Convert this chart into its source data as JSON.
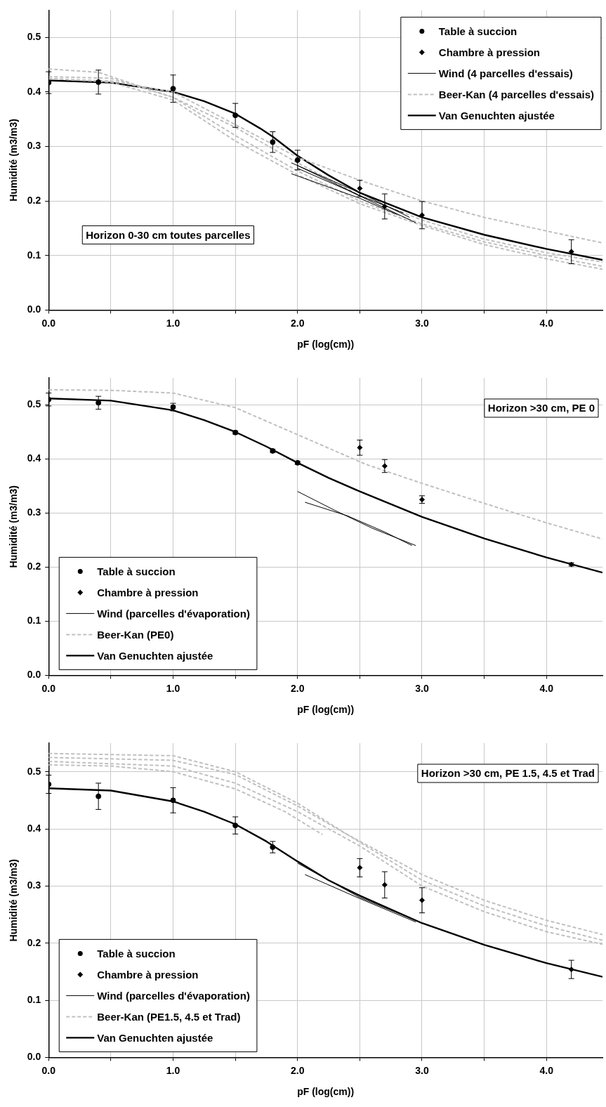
{
  "chart_data": [
    {
      "type": "line",
      "xlabel": "pF (log(cm))",
      "ylabel": "Humidité (m3/m3)",
      "annotations": [
        "Horizon 0-30 cm toutes parcelles"
      ],
      "legend": "top right",
      "grid": true,
      "xlim": [
        0,
        4.45
      ],
      "xticks": [
        {
          "value": 0,
          "label": "0.0"
        },
        {
          "value": 0.5,
          "label": null
        },
        {
          "value": 1,
          "label": "1.0"
        },
        {
          "value": 1.5,
          "label": null
        },
        {
          "value": 2,
          "label": "2.0"
        },
        {
          "value": 2.5,
          "label": null
        },
        {
          "value": 3,
          "label": "3.0"
        },
        {
          "value": 3.5,
          "label": null
        },
        {
          "value": 4,
          "label": "4.0"
        }
      ],
      "ylim": [
        0,
        0.55
      ],
      "yticks": [
        {
          "value": 0,
          "label": "0.0"
        },
        {
          "value": 0.1,
          "label": "0.1"
        },
        {
          "value": 0.2,
          "label": "0.2"
        },
        {
          "value": 0.3,
          "label": "0.3"
        },
        {
          "value": 0.4,
          "label": "0.4"
        },
        {
          "value": 0.5,
          "label": "0.5"
        }
      ],
      "series": [
        {
          "name": "Table à succion",
          "type": "scatter",
          "marker": "circle",
          "color": "#000000",
          "x": [
            0,
            0.4,
            1,
            1.5,
            1.8,
            2
          ],
          "values": [
            0.417,
            0.418,
            0.406,
            0.357,
            0.308,
            0.275
          ],
          "errors": [
            0.02,
            0.022,
            0.025,
            0.022,
            0.019,
            0.018
          ]
        },
        {
          "name": "Chambre à pression",
          "type": "scatter",
          "marker": "diamond",
          "color": "#000000",
          "x": [
            2.5,
            2.7,
            3,
            4.2
          ],
          "values": [
            0.223,
            0.19,
            0.174,
            0.107
          ],
          "errors": [
            0.015,
            0.023,
            0.025,
            0.022
          ]
        },
        {
          "name": "Wind (4 parcelles d'essais)",
          "type": "line",
          "marker": "none",
          "line_style": "solid",
          "color": "#000000",
          "x": [
            1.95,
            2.5,
            2.9
          ],
          "values": [
            0.27,
            0.215,
            0.17
          ]
        },
        {
          "type": "line",
          "marker": "none",
          "line_style": "solid",
          "color": "#000000",
          "x": [
            2,
            2.5,
            2.85
          ],
          "values": [
            0.265,
            0.21,
            0.178
          ]
        },
        {
          "type": "line",
          "marker": "none",
          "line_style": "solid",
          "color": "#000000",
          "x": [
            1.95,
            2.5,
            2.8
          ],
          "values": [
            0.25,
            0.205,
            0.175
          ]
        },
        {
          "type": "line",
          "marker": "none",
          "line_style": "solid",
          "color": "#000000",
          "x": [
            2,
            2.4,
            2.95
          ],
          "values": [
            0.26,
            0.22,
            0.16
          ]
        },
        {
          "name": "Beer-Kan (4 parcelles d'essais)",
          "type": "line",
          "marker": "none",
          "line_style": "dashed",
          "color": "#c0c0c0",
          "x": [
            0,
            0.4,
            1,
            1.5,
            2,
            2.5,
            3,
            3.5,
            4,
            4.45
          ],
          "values": [
            0.442,
            0.436,
            0.39,
            0.32,
            0.255,
            0.2,
            0.158,
            0.125,
            0.1,
            0.08
          ]
        },
        {
          "type": "line",
          "marker": "none",
          "line_style": "dashed",
          "color": "#c0c0c0",
          "x": [
            0,
            0.5,
            1,
            1.5,
            2,
            2.5,
            3,
            3.5,
            4,
            4.45
          ],
          "values": [
            0.428,
            0.425,
            0.39,
            0.335,
            0.27,
            0.21,
            0.165,
            0.13,
            0.105,
            0.088
          ]
        },
        {
          "type": "line",
          "marker": "none",
          "line_style": "dashed",
          "color": "#c0c0c0",
          "x": [
            0,
            0.5,
            1,
            1.5,
            2,
            2.5,
            3,
            3.5,
            4,
            4.45
          ],
          "values": [
            0.424,
            0.42,
            0.4,
            0.34,
            0.28,
            0.238,
            0.2,
            0.17,
            0.145,
            0.123
          ]
        },
        {
          "type": "line",
          "marker": "none",
          "line_style": "dashed",
          "color": "#c0c0c0",
          "x": [
            0,
            0.5,
            1,
            1.5,
            2,
            2.5,
            3,
            3.5,
            4,
            4.45
          ],
          "values": [
            0.425,
            0.418,
            0.385,
            0.31,
            0.248,
            0.195,
            0.155,
            0.12,
            0.094,
            0.075
          ]
        },
        {
          "name": "Van Genuchten ajustée",
          "type": "line",
          "marker": "none",
          "line_style": "solid",
          "color": "#000000",
          "x": [
            0,
            0.5,
            1,
            1.25,
            1.5,
            1.7,
            1.8,
            2,
            2.25,
            2.5,
            3,
            3.5,
            4,
            4.45
          ],
          "values": [
            0.421,
            0.417,
            0.4,
            0.383,
            0.36,
            0.333,
            0.318,
            0.283,
            0.247,
            0.215,
            0.17,
            0.138,
            0.112,
            0.092
          ]
        }
      ]
    },
    {
      "type": "line",
      "xlabel": "pF (log(cm))",
      "ylabel": "Humidité (m3/m3)",
      "annotations": [
        "Horizon >30 cm, PE 0"
      ],
      "legend": "bottom left",
      "grid": true,
      "xlim": [
        0,
        4.45
      ],
      "xticks": [
        {
          "value": 0,
          "label": "0.0"
        },
        {
          "value": 0.5,
          "label": null
        },
        {
          "value": 1,
          "label": "1.0"
        },
        {
          "value": 1.5,
          "label": null
        },
        {
          "value": 2,
          "label": "2.0"
        },
        {
          "value": 2.5,
          "label": null
        },
        {
          "value": 3,
          "label": "3.0"
        },
        {
          "value": 3.5,
          "label": null
        },
        {
          "value": 4,
          "label": "4.0"
        }
      ],
      "ylim": [
        0,
        0.55
      ],
      "yticks": [
        {
          "value": 0,
          "label": "0.0"
        },
        {
          "value": 0.1,
          "label": "0.1"
        },
        {
          "value": 0.2,
          "label": "0.2"
        },
        {
          "value": 0.3,
          "label": "0.3"
        },
        {
          "value": 0.4,
          "label": "0.4"
        },
        {
          "value": 0.5,
          "label": "0.5"
        }
      ],
      "series": [
        {
          "name": "Table à succion",
          "type": "scatter",
          "marker": "circle",
          "color": "#000000",
          "x": [
            0,
            0.4,
            1,
            1.5,
            1.8,
            2
          ],
          "values": [
            0.51,
            0.504,
            0.496,
            0.449,
            0.415,
            0.393
          ],
          "errors": [
            0.012,
            0.012,
            0.007,
            0.003,
            0.003,
            0.003
          ]
        },
        {
          "name": "Chambre à pression",
          "type": "scatter",
          "marker": "diamond",
          "color": "#000000",
          "x": [
            2.5,
            2.7,
            3,
            4.2
          ],
          "values": [
            0.421,
            0.387,
            0.325,
            0.205
          ],
          "errors": [
            0.014,
            0.012,
            0.007,
            0.003
          ]
        },
        {
          "name": "Wind (parcelles d'évaporation)",
          "type": "line",
          "marker": "none",
          "line_style": "solid",
          "color": "#000000",
          "x": [
            2,
            2.3,
            2.6,
            2.95
          ],
          "values": [
            0.34,
            0.305,
            0.272,
            0.24
          ]
        },
        {
          "type": "line",
          "marker": "none",
          "line_style": "solid",
          "color": "#000000",
          "x": [
            2.06,
            2.4,
            2.7,
            2.92
          ],
          "values": [
            0.32,
            0.295,
            0.265,
            0.24
          ]
        },
        {
          "name": "Beer-Kan (PE0)",
          "type": "line",
          "marker": "none",
          "line_style": "dashed",
          "color": "#c0c0c0",
          "x": [
            0,
            0.5,
            1,
            1.5,
            2,
            2.55,
            3,
            3.5,
            4,
            4.45
          ],
          "values": [
            0.528,
            0.527,
            0.522,
            0.495,
            0.445,
            0.39,
            0.355,
            0.318,
            0.282,
            0.252
          ]
        },
        {
          "name": "Van Genuchten ajustée",
          "type": "line",
          "marker": "none",
          "line_style": "solid",
          "color": "#000000",
          "x": [
            0,
            0.5,
            1,
            1.25,
            1.5,
            1.75,
            2,
            2.25,
            2.5,
            3,
            3.5,
            4,
            4.45
          ],
          "values": [
            0.512,
            0.508,
            0.49,
            0.472,
            0.45,
            0.423,
            0.393,
            0.365,
            0.34,
            0.293,
            0.253,
            0.218,
            0.19
          ]
        }
      ]
    },
    {
      "type": "line",
      "xlabel": "pF (log(cm))",
      "ylabel": "Humidité (m3/m3)",
      "annotations": [
        "Horizon >30 cm, PE 1.5, 4.5 et Trad"
      ],
      "legend": "bottom left",
      "grid": true,
      "xlim": [
        0,
        4.45
      ],
      "xticks": [
        {
          "value": 0,
          "label": "0.0"
        },
        {
          "value": 0.5,
          "label": null
        },
        {
          "value": 1,
          "label": "1.0"
        },
        {
          "value": 1.5,
          "label": null
        },
        {
          "value": 2,
          "label": "2.0"
        },
        {
          "value": 2.5,
          "label": null
        },
        {
          "value": 3,
          "label": "3.0"
        },
        {
          "value": 3.5,
          "label": null
        },
        {
          "value": 4,
          "label": "4.0"
        }
      ],
      "ylim": [
        0,
        0.55
      ],
      "yticks": [
        {
          "value": 0,
          "label": "0.0"
        },
        {
          "value": 0.1,
          "label": "0.1"
        },
        {
          "value": 0.2,
          "label": "0.2"
        },
        {
          "value": 0.3,
          "label": "0.3"
        },
        {
          "value": 0.4,
          "label": "0.4"
        },
        {
          "value": 0.5,
          "label": "0.5"
        }
      ],
      "series": [
        {
          "name": "Table à succion",
          "type": "scatter",
          "marker": "circle",
          "color": "#000000",
          "x": [
            0,
            0.4,
            1,
            1.5,
            1.8
          ],
          "values": [
            0.478,
            0.457,
            0.45,
            0.406,
            0.368
          ],
          "errors": [
            0.016,
            0.023,
            0.022,
            0.015,
            0.01
          ]
        },
        {
          "name": "Chambre à pression",
          "type": "scatter",
          "marker": "diamond",
          "color": "#000000",
          "x": [
            2.5,
            2.7,
            3,
            4.2
          ],
          "values": [
            0.332,
            0.302,
            0.275,
            0.154
          ],
          "errors": [
            0.016,
            0.023,
            0.022,
            0.016
          ]
        },
        {
          "name": "Wind (parcelles d'évaporation)",
          "type": "line",
          "marker": "none",
          "line_style": "solid",
          "color": "#000000",
          "x": [
            2,
            2.5,
            3
          ],
          "values": [
            0.34,
            0.28,
            0.235
          ]
        },
        {
          "type": "line",
          "marker": "none",
          "line_style": "solid",
          "color": "#000000",
          "x": [
            2.06,
            2.5,
            2.95
          ],
          "values": [
            0.32,
            0.278,
            0.237
          ]
        },
        {
          "name": "Beer-Kan (PE1.5, 4.5 et Trad)",
          "type": "line",
          "marker": "none",
          "line_style": "dashed",
          "color": "#c0c0c0",
          "x": [
            0,
            1,
            1.5,
            2,
            2.4,
            3,
            3.5,
            4,
            4.45
          ],
          "values": [
            0.532,
            0.528,
            0.5,
            0.445,
            0.39,
            0.32,
            0.275,
            0.24,
            0.215
          ]
        },
        {
          "type": "line",
          "marker": "none",
          "line_style": "dashed",
          "color": "#c0c0c0",
          "x": [
            0,
            1,
            1.5,
            2,
            2.4,
            3,
            3.5,
            4,
            4.45
          ],
          "values": [
            0.525,
            0.52,
            0.495,
            0.44,
            0.39,
            0.31,
            0.265,
            0.23,
            0.205
          ]
        },
        {
          "type": "line",
          "marker": "none",
          "line_style": "dashed",
          "color": "#c0c0c0",
          "x": [
            0,
            1,
            1.5,
            2,
            2.5,
            3,
            3.5,
            4,
            4.45
          ],
          "values": [
            0.518,
            0.51,
            0.48,
            0.43,
            0.37,
            0.3,
            0.255,
            0.22,
            0.198
          ]
        },
        {
          "type": "line",
          "marker": "none",
          "line_style": "dashed",
          "color": "#c0c0c0",
          "x": [
            0,
            0.5,
            1,
            1.5,
            1.9,
            2.2
          ],
          "values": [
            0.512,
            0.51,
            0.5,
            0.47,
            0.43,
            0.39
          ]
        },
        {
          "name": "Van Genuchten ajustée",
          "type": "line",
          "marker": "none",
          "line_style": "solid",
          "color": "#000000",
          "x": [
            0,
            0.5,
            1,
            1.25,
            1.5,
            1.75,
            2,
            2.25,
            2.5,
            3,
            3.5,
            4,
            4.45
          ],
          "values": [
            0.471,
            0.467,
            0.448,
            0.43,
            0.408,
            0.378,
            0.343,
            0.31,
            0.283,
            0.235,
            0.197,
            0.165,
            0.141
          ]
        }
      ]
    }
  ]
}
